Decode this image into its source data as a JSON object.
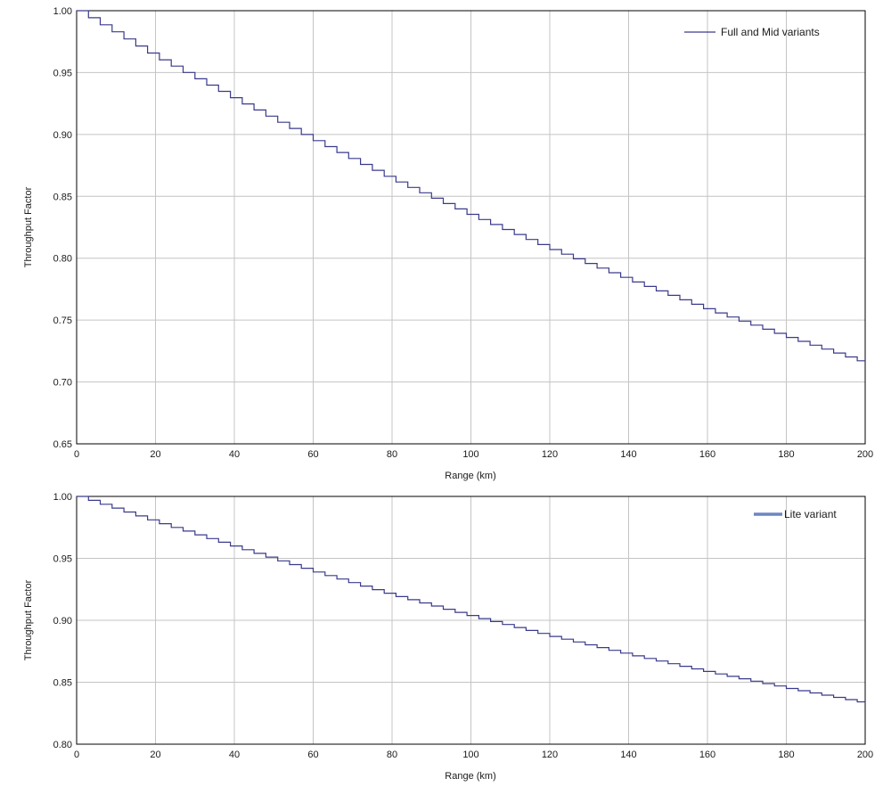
{
  "chart_data": [
    {
      "type": "line",
      "xlabel": "Range (km)",
      "ylabel": "Throughput Factor",
      "xlim": [
        0,
        200
      ],
      "ylim": [
        0.65,
        1.0
      ],
      "xticks": [
        0,
        20,
        40,
        60,
        80,
        100,
        120,
        140,
        160,
        180,
        200
      ],
      "xtick_labels": [
        "0",
        "20",
        "40",
        "60",
        "80",
        "100",
        "120",
        "140",
        "160",
        "180",
        "200"
      ],
      "yticks": [
        0.65,
        0.7,
        0.75,
        0.8,
        0.85,
        0.9,
        0.95,
        1.0
      ],
      "ytick_labels": [
        "0.65",
        "0.70",
        "0.75",
        "0.80",
        "0.85",
        "0.90",
        "0.95",
        "1.00"
      ],
      "grid": true,
      "legend_position": "top-right",
      "step": 3,
      "series": [
        {
          "name": "Full and Mid variants",
          "color": "#3a3a8c",
          "x": [
            0,
            20,
            40,
            60,
            80,
            100,
            120,
            140,
            160,
            180,
            200
          ],
          "y": [
            1.0,
            0.962,
            0.928,
            0.895,
            0.863,
            0.834,
            0.807,
            0.782,
            0.758,
            0.736,
            0.715
          ]
        }
      ]
    },
    {
      "type": "line",
      "xlabel": "Range (km)",
      "ylabel": "Throughput Factor",
      "xlim": [
        0,
        200
      ],
      "ylim": [
        0.8,
        1.0
      ],
      "xticks": [
        0,
        20,
        40,
        60,
        80,
        100,
        120,
        140,
        160,
        180,
        200
      ],
      "xtick_labels": [
        "0",
        "20",
        "40",
        "60",
        "80",
        "100",
        "120",
        "140",
        "160",
        "180",
        "200"
      ],
      "yticks": [
        0.8,
        0.85,
        0.9,
        0.95,
        1.0
      ],
      "ytick_labels": [
        "0.80",
        "0.85",
        "0.90",
        "0.95",
        "1.00"
      ],
      "grid": true,
      "legend_position": "top-right",
      "step": 3,
      "series": [
        {
          "name": "Lite variant",
          "color": "#3a3a8c",
          "legend_color": "#6b86c4",
          "x": [
            0,
            20,
            40,
            60,
            80,
            100,
            120,
            140,
            160,
            180,
            200
          ],
          "y": [
            1.0,
            0.979,
            0.959,
            0.939,
            0.92,
            0.903,
            0.887,
            0.872,
            0.858,
            0.845,
            0.833
          ]
        }
      ]
    }
  ]
}
